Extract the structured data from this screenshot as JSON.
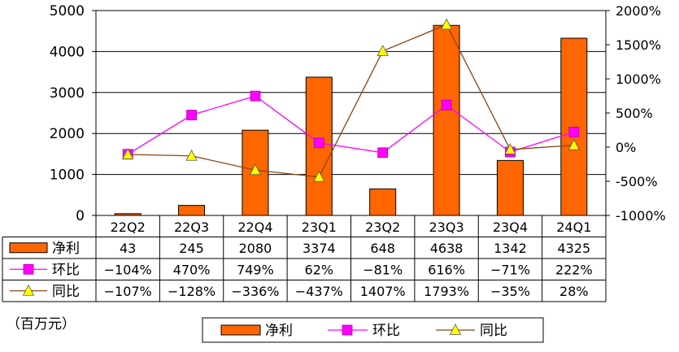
{
  "chart_data": {
    "type": "bar",
    "categories": [
      "22Q2",
      "22Q3",
      "22Q4",
      "23Q1",
      "23Q2",
      "23Q3",
      "23Q4",
      "24Q1"
    ],
    "ylim_left": [
      0,
      5000
    ],
    "yticks_left": [
      0,
      1000,
      2000,
      3000,
      4000,
      5000
    ],
    "ylim_right": [
      -1000,
      2000
    ],
    "yticks_right": [
      -1000,
      -500,
      0,
      500,
      1000,
      1500,
      2000
    ],
    "yticks_right_labels": [
      "-1000%",
      "-500%",
      "0%",
      "500%",
      "1000%",
      "1500%",
      "2000%"
    ],
    "grid": true,
    "legend_position": "bottom",
    "unit_label": "（百万元）",
    "series": [
      {
        "name": "净利",
        "type": "bar",
        "axis": "left",
        "color": "#ff6600",
        "values": [
          43,
          245,
          2080,
          3374,
          648,
          4638,
          1342,
          4325
        ],
        "table_labels": [
          "43",
          "245",
          "2080",
          "3374",
          "648",
          "4638",
          "1342",
          "4325"
        ]
      },
      {
        "name": "环比",
        "type": "line",
        "axis": "right",
        "color": "#ff00ff",
        "line_color": "#ff00ff",
        "marker": "square",
        "values": [
          -104,
          470,
          749,
          62,
          -81,
          616,
          -71,
          222
        ],
        "table_labels": [
          "−104%",
          "470%",
          "749%",
          "62%",
          "−81%",
          "616%",
          "−71%",
          "222%"
        ]
      },
      {
        "name": "同比",
        "type": "line",
        "axis": "right",
        "color": "#ffff00",
        "line_color": "#8b4513",
        "marker": "triangle",
        "values": [
          -107,
          -128,
          -336,
          -437,
          1407,
          1793,
          -35,
          28
        ],
        "table_labels": [
          "−107%",
          "−128%",
          "−336%",
          "−437%",
          "1407%",
          "1793%",
          "−35%",
          "28%"
        ]
      }
    ]
  }
}
